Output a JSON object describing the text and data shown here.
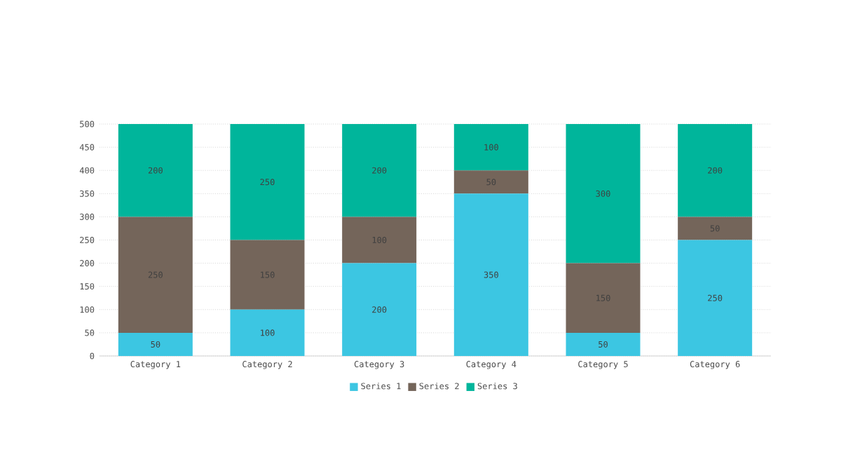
{
  "chart_data": {
    "type": "bar",
    "stacked": true,
    "categories": [
      "Category 1",
      "Category 2",
      "Category 3",
      "Category 4",
      "Category 5",
      "Category 6"
    ],
    "series": [
      {
        "name": "Series 1",
        "color": "#3cc6e2",
        "values": [
          50,
          100,
          200,
          350,
          50,
          250
        ]
      },
      {
        "name": "Series 2",
        "color": "#74655a",
        "values": [
          250,
          150,
          100,
          50,
          150,
          50
        ]
      },
      {
        "name": "Series 3",
        "color": "#00b59b",
        "values": [
          200,
          250,
          200,
          100,
          300,
          200
        ]
      }
    ],
    "ylim": [
      0,
      500
    ],
    "yticks": [
      0,
      50,
      100,
      150,
      200,
      250,
      300,
      350,
      400,
      450,
      500
    ],
    "grid": "y",
    "legend": "bottom",
    "data_labels": true
  }
}
